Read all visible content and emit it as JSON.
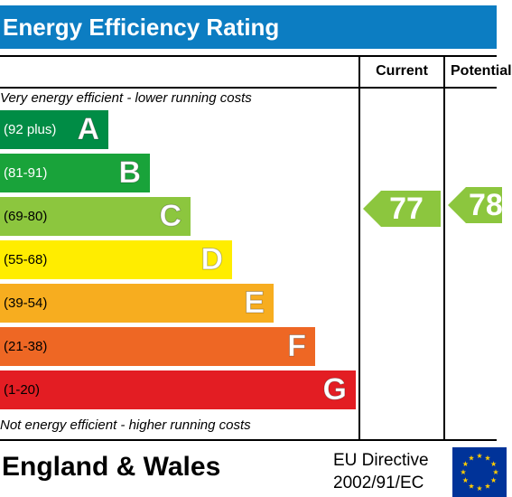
{
  "title": "Energy Efficiency Rating",
  "columns": {
    "current": "Current",
    "potential": "Potential"
  },
  "captions": {
    "top": "Very energy efficient - lower running costs",
    "bottom": "Not energy efficient - higher running costs"
  },
  "chart_data": {
    "type": "bar",
    "categories": [
      "A",
      "B",
      "C",
      "D",
      "E",
      "F",
      "G"
    ],
    "bands": [
      {
        "letter": "A",
        "range": "(92 plus)",
        "min": 92,
        "max": 100,
        "color": "#008c45",
        "range_color": "#ffffff"
      },
      {
        "letter": "B",
        "range": "(81-91)",
        "min": 81,
        "max": 91,
        "color": "#19a33a",
        "range_color": "#ffffff"
      },
      {
        "letter": "C",
        "range": "(69-80)",
        "min": 69,
        "max": 80,
        "color": "#8cc63e",
        "range_color": "#000000"
      },
      {
        "letter": "D",
        "range": "(55-68)",
        "min": 55,
        "max": 68,
        "color": "#ffed00",
        "range_color": "#000000"
      },
      {
        "letter": "E",
        "range": "(39-54)",
        "min": 39,
        "max": 54,
        "color": "#f7ad1f",
        "range_color": "#000000"
      },
      {
        "letter": "F",
        "range": "(21-38)",
        "min": 21,
        "max": 38,
        "color": "#ee6724",
        "range_color": "#000000"
      },
      {
        "letter": "G",
        "range": "(1-20)",
        "min": 1,
        "max": 20,
        "color": "#e31d23",
        "range_color": "#000000"
      }
    ],
    "current": {
      "value": 77,
      "band": "C",
      "color": "#8cc63e"
    },
    "potential": {
      "value": 78,
      "band": "C",
      "color": "#8cc63e"
    }
  },
  "footer": {
    "country": "England & Wales",
    "directive_line1": "EU Directive",
    "directive_line2": "2002/91/EC"
  },
  "eu_flag": {
    "icon": "eu-flag-icon",
    "background": "#003399",
    "star_color": "#ffcc00"
  }
}
